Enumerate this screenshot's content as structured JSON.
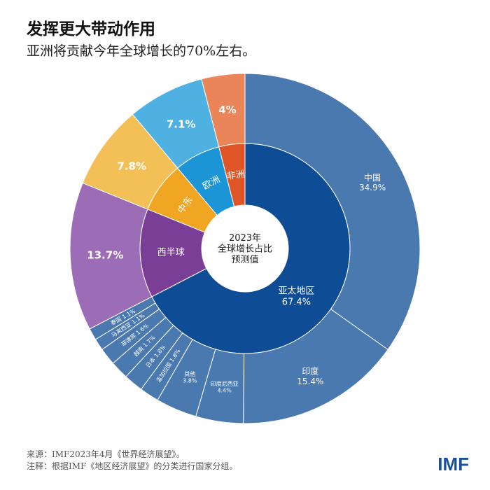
{
  "header": {
    "title": "发挥更大带动作用",
    "subtitle": "亚洲将贡献今年全球增长的70%左右。"
  },
  "chart_data": {
    "type": "sunburst",
    "center_label": [
      "2023年",
      "全球增长占比",
      "预测值"
    ],
    "inner": [
      {
        "name": "亚太地区",
        "value": 67.4,
        "label": "67.4%",
        "color": "#0f4c96",
        "outer_color": "#4a79b0"
      },
      {
        "name": "西半球",
        "value": 13.7,
        "label": "13.7%",
        "color": "#7a3e96",
        "outer_color": "#9d6cb6"
      },
      {
        "name": "中东",
        "value": 7.8,
        "label": "7.8%",
        "color": "#f0a623",
        "outer_color": "#f3c058"
      },
      {
        "name": "欧洲",
        "value": 7.1,
        "label": "7.1%",
        "color": "#1b95d6",
        "outer_color": "#4fb1e1"
      },
      {
        "name": "非洲",
        "value": 4,
        "label": "4%",
        "color": "#e05526",
        "outer_color": "#ea855a"
      }
    ],
    "asia_outer": [
      {
        "name": "中国",
        "value": 34.9,
        "label": "34.9%"
      },
      {
        "name": "印度",
        "value": 15.4,
        "label": "15.4%"
      },
      {
        "name": "印度尼西亚",
        "value": 4.4,
        "label": "4.4%"
      },
      {
        "name": "其他",
        "value": 3.8,
        "label": "3.8%"
      },
      {
        "name": "孟加拉国",
        "value": 1.8,
        "label": "1.8%"
      },
      {
        "name": "日本",
        "value": 1.8,
        "label": "1.8%"
      },
      {
        "name": "越南",
        "value": 1.7,
        "label": "1.7%"
      },
      {
        "name": "菲律宾",
        "value": 1.6,
        "label": "1.6%"
      },
      {
        "name": "马来西亚",
        "value": 1.1,
        "label": "1.1%"
      },
      {
        "name": "泰国",
        "value": 1.1,
        "label": "1.1%"
      }
    ]
  },
  "footer": {
    "source": "来源：IMF2023年4月《世界经济展望》。",
    "note": "注释：根据IMF《地区经济展望》的分类进行国家分组。",
    "logo": "IMF"
  }
}
